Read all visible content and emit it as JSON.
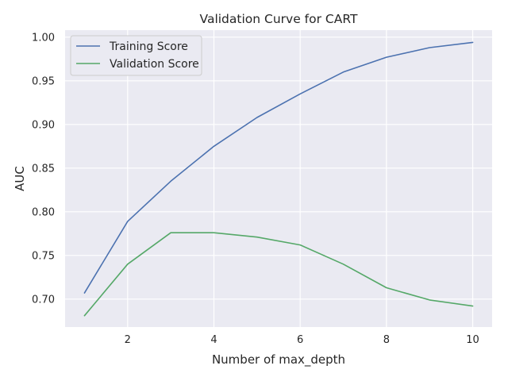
{
  "chart_data": {
    "type": "line",
    "title": "Validation Curve for CART",
    "xlabel": "Number of max_depth",
    "ylabel": "AUC",
    "x": [
      1,
      2,
      3,
      4,
      5,
      6,
      7,
      8,
      9,
      10
    ],
    "xlim": [
      0.55,
      10.45
    ],
    "ylim": [
      0.668,
      1.008
    ],
    "xticks": [
      2,
      4,
      6,
      8,
      10
    ],
    "yticks": [
      0.7,
      0.75,
      0.8,
      0.85,
      0.9,
      0.95,
      1.0
    ],
    "ytick_labels": [
      "0.70",
      "0.75",
      "0.80",
      "0.85",
      "0.90",
      "0.95",
      "1.00"
    ],
    "grid": true,
    "legend_position": "top-left",
    "series": [
      {
        "name": "Training Score",
        "color": "#4c72b0",
        "values": [
          0.707,
          0.789,
          0.835,
          0.875,
          0.908,
          0.935,
          0.96,
          0.977,
          0.988,
          0.994
        ]
      },
      {
        "name": "Validation Score",
        "color": "#55a868",
        "values": [
          0.681,
          0.74,
          0.776,
          0.776,
          0.771,
          0.762,
          0.74,
          0.713,
          0.699,
          0.692
        ]
      }
    ]
  }
}
